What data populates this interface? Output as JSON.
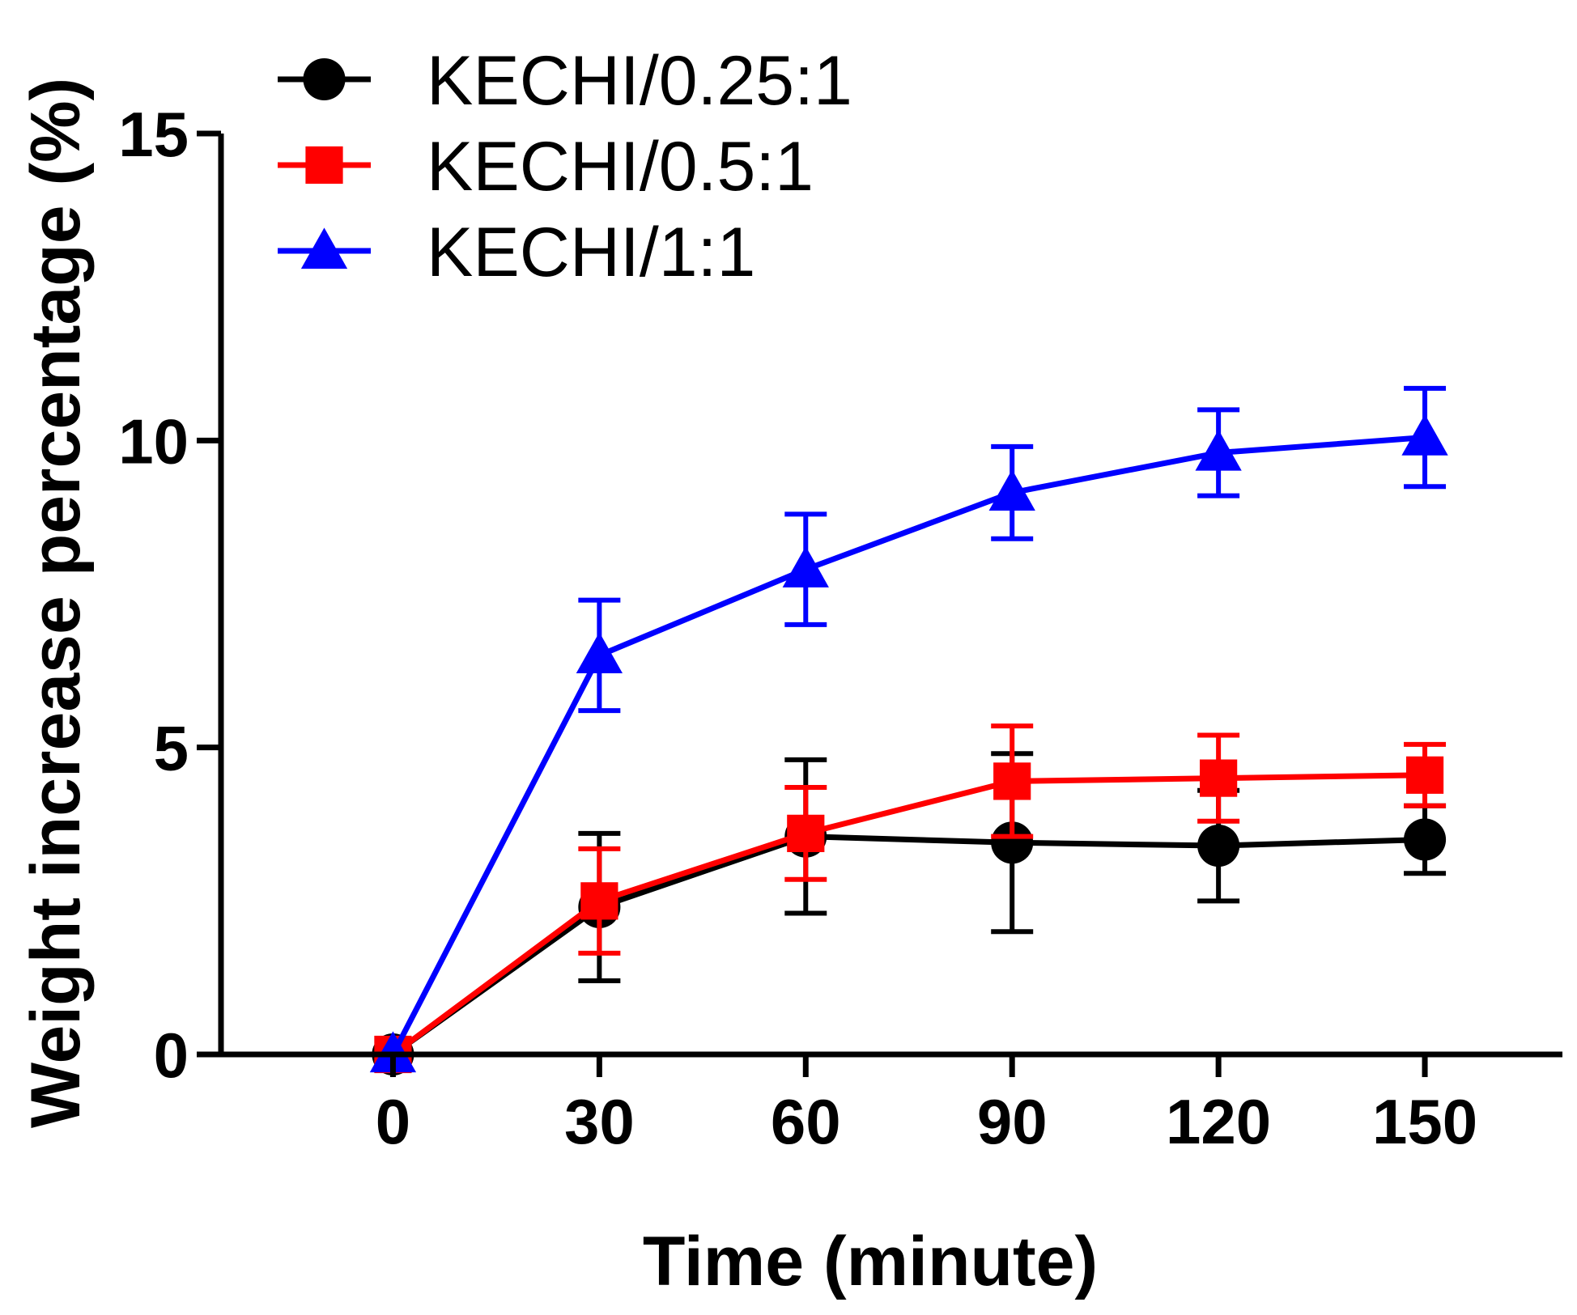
{
  "chart_data": {
    "type": "line",
    "title": "",
    "xlabel": "Time (minute)",
    "ylabel": "Weight increase percentage (%)",
    "x": [
      0,
      30,
      60,
      90,
      120,
      150
    ],
    "xticks": [
      0,
      30,
      60,
      90,
      120,
      150
    ],
    "xtick_labels": [
      "0",
      "30",
      "60",
      "90",
      "120",
      "150"
    ],
    "xlim": [
      -25,
      170
    ],
    "yticks": [
      0,
      5,
      10,
      15
    ],
    "ytick_labels": [
      "0",
      "5",
      "10",
      "15"
    ],
    "ylim": [
      0,
      15
    ],
    "grid": false,
    "legend_position": "top-left",
    "series": [
      {
        "name": "KECHI/0.25:1",
        "color": "#000000",
        "marker": "circle",
        "values": [
          0,
          2.4,
          3.55,
          3.45,
          3.4,
          3.5
        ],
        "errors": [
          0,
          1.2,
          1.25,
          1.45,
          0.9,
          0.55
        ]
      },
      {
        "name": "KECHI/0.5:1",
        "color": "#ff0000",
        "marker": "square",
        "values": [
          0,
          2.5,
          3.6,
          4.45,
          4.5,
          4.55
        ],
        "errors": [
          0,
          0.85,
          0.75,
          0.9,
          0.7,
          0.5
        ]
      },
      {
        "name": "KECHI/1:1",
        "color": "#0000ff",
        "marker": "triangle",
        "values": [
          0,
          6.5,
          7.9,
          9.15,
          9.8,
          10.05
        ],
        "errors": [
          0,
          0.9,
          0.9,
          0.75,
          0.7,
          0.8
        ]
      }
    ]
  }
}
